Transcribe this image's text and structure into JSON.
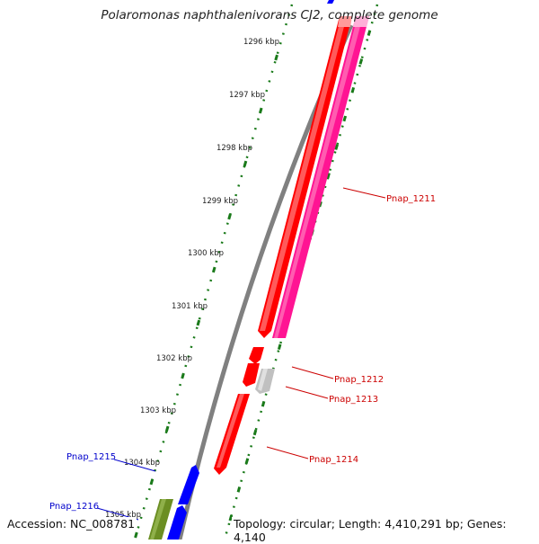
{
  "title": "Polaromonas naphthalenivorans CJ2, complete genome",
  "footer": {
    "accession": "Accession: NC_008781",
    "topology": "Topology: circular; Length: 4,410,291 bp; Genes: 4,140"
  },
  "colors": {
    "backbone": "#808080",
    "ruler": "#1a7a1a",
    "gene_red": "#ff0000",
    "gene_pink": "#ff1493",
    "gene_gray": "#c0c0c0",
    "gene_blue": "#0000ff",
    "gene_olive": "#6b8e23",
    "label_red": "#cc0000",
    "label_blue": "#0000cc"
  },
  "ruler_ticks": [
    "1296 kbp",
    "1297 kbp",
    "1298 kbp",
    "1299 kbp",
    "1300 kbp",
    "1301 kbp",
    "1302 kbp",
    "1303 kbp",
    "1304 kbp",
    "1305 kbp"
  ],
  "gene_labels": {
    "pnap_1211": "Pnap_1211",
    "pnap_1212": "Pnap_1212",
    "pnap_1213": "Pnap_1213",
    "pnap_1214": "Pnap_1214",
    "pnap_1215": "Pnap_1215",
    "pnap_1216": "Pnap_1216"
  }
}
